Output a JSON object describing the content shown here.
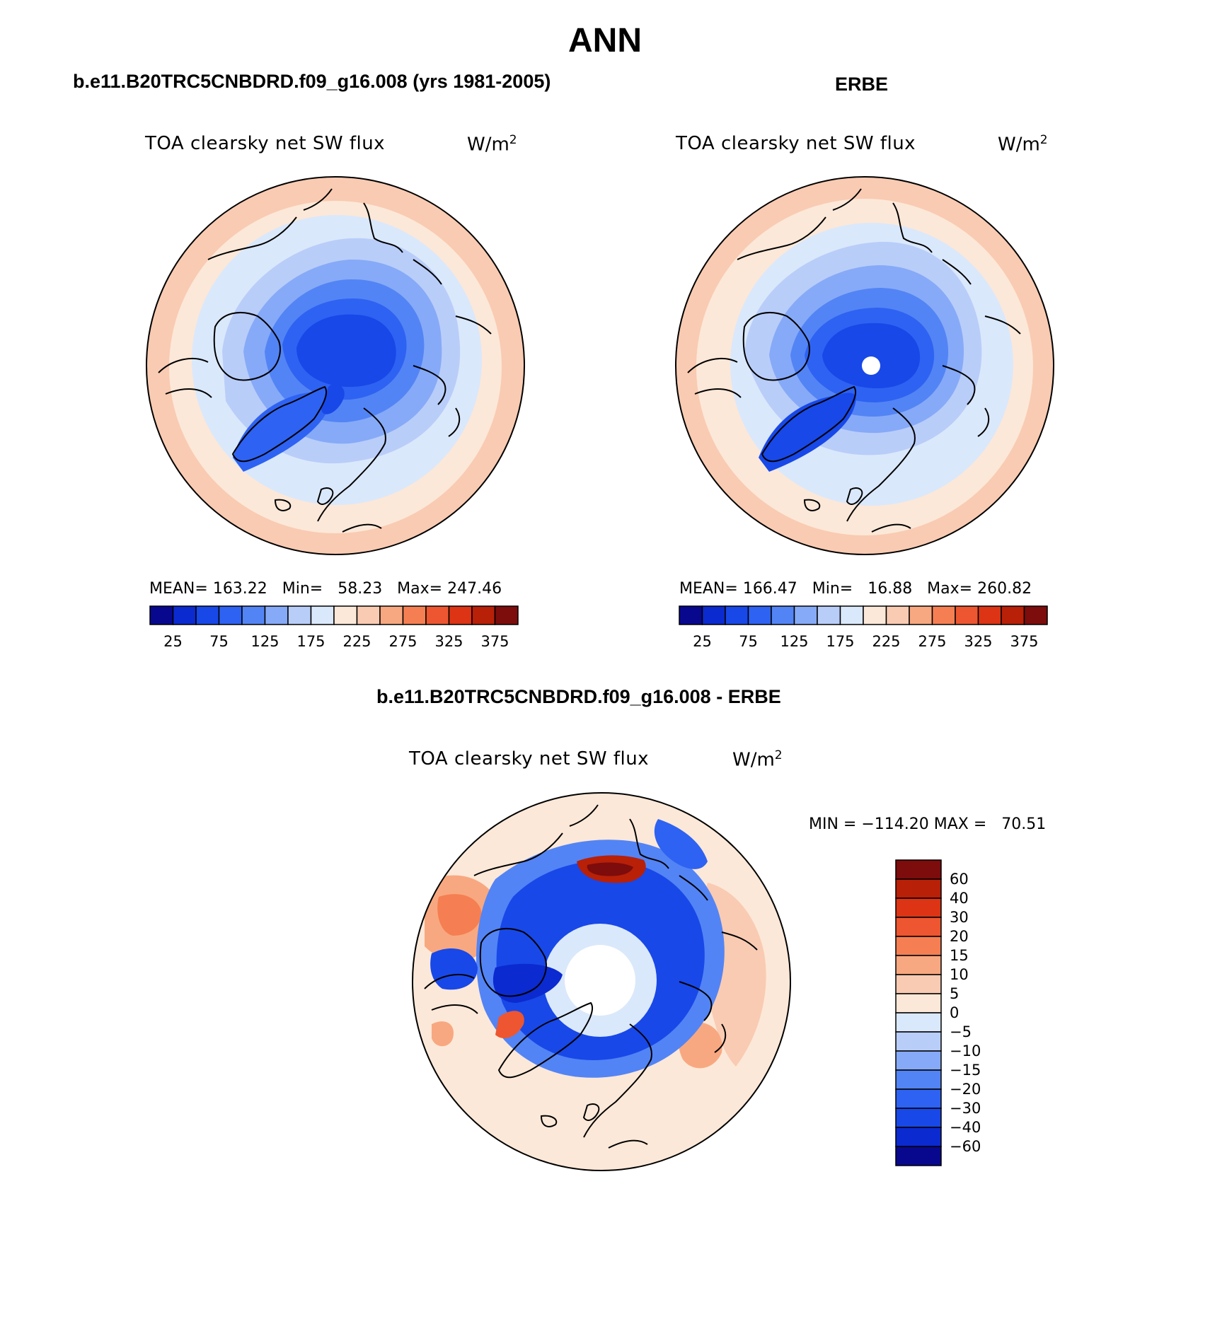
{
  "title": "ANN",
  "panels": [
    {
      "title": "b.e11.B20TRC5CNBDRD.f09_g16.008 (yrs 1981-2005)",
      "field_label": "TOA clearsky net SW flux",
      "units": "W/m",
      "units_exp": "2",
      "stats": "MEAN= 163.22   Min=   58.23   Max= 247.46",
      "stats_values": {
        "mean": 163.22,
        "min": 58.23,
        "max": 247.46
      },
      "has_pole_hole": false
    },
    {
      "title": "ERBE",
      "field_label": "TOA clearsky net SW flux",
      "units": "W/m",
      "units_exp": "2",
      "stats": "MEAN= 166.47   Min=   16.88   Max= 260.82",
      "stats_values": {
        "mean": 166.47,
        "min": 16.88,
        "max": 260.82
      },
      "has_pole_hole": true
    }
  ],
  "colorbar_abs": {
    "levels": [
      0,
      25,
      50,
      75,
      100,
      125,
      150,
      175,
      200,
      225,
      250,
      275,
      300,
      325,
      350,
      375,
      400
    ],
    "tick_labels": [
      "25",
      "75",
      "125",
      "175",
      "225",
      "275",
      "325",
      "375"
    ],
    "colors": [
      "#08088f",
      "#0b2ad0",
      "#1848e8",
      "#2e62f2",
      "#5384f5",
      "#86aaf7",
      "#b9cdf9",
      "#dae8fb",
      "#fce8d8",
      "#f9cbb2",
      "#f8a880",
      "#f57f52",
      "#ed5630",
      "#dc3414",
      "#b82008",
      "#7d0c0c"
    ]
  },
  "diff_panel": {
    "title": "b.e11.B20TRC5CNBDRD.f09_g16.008 - ERBE",
    "field_label": "TOA clearsky net SW flux",
    "units": "W/m",
    "units_exp": "2",
    "minmax": "MIN = −114.20 MAX =   70.51",
    "minmax_values": {
      "min": -114.2,
      "max": 70.51
    }
  },
  "colorbar_diff": {
    "tick_labels": [
      "60",
      "40",
      "30",
      "20",
      "15",
      "10",
      "5",
      "0",
      "−5",
      "−10",
      "−15",
      "−20",
      "−30",
      "−40",
      "−60"
    ],
    "colors_top_to_bottom": [
      "#7d0c0c",
      "#b82008",
      "#dc3414",
      "#ed5630",
      "#f57f52",
      "#f8a880",
      "#f9cbb2",
      "#fce8d8",
      "#dae8fb",
      "#b9cdf9",
      "#86aaf7",
      "#5384f5",
      "#2e62f2",
      "#1848e8",
      "#0b2ad0",
      "#08088f"
    ]
  }
}
